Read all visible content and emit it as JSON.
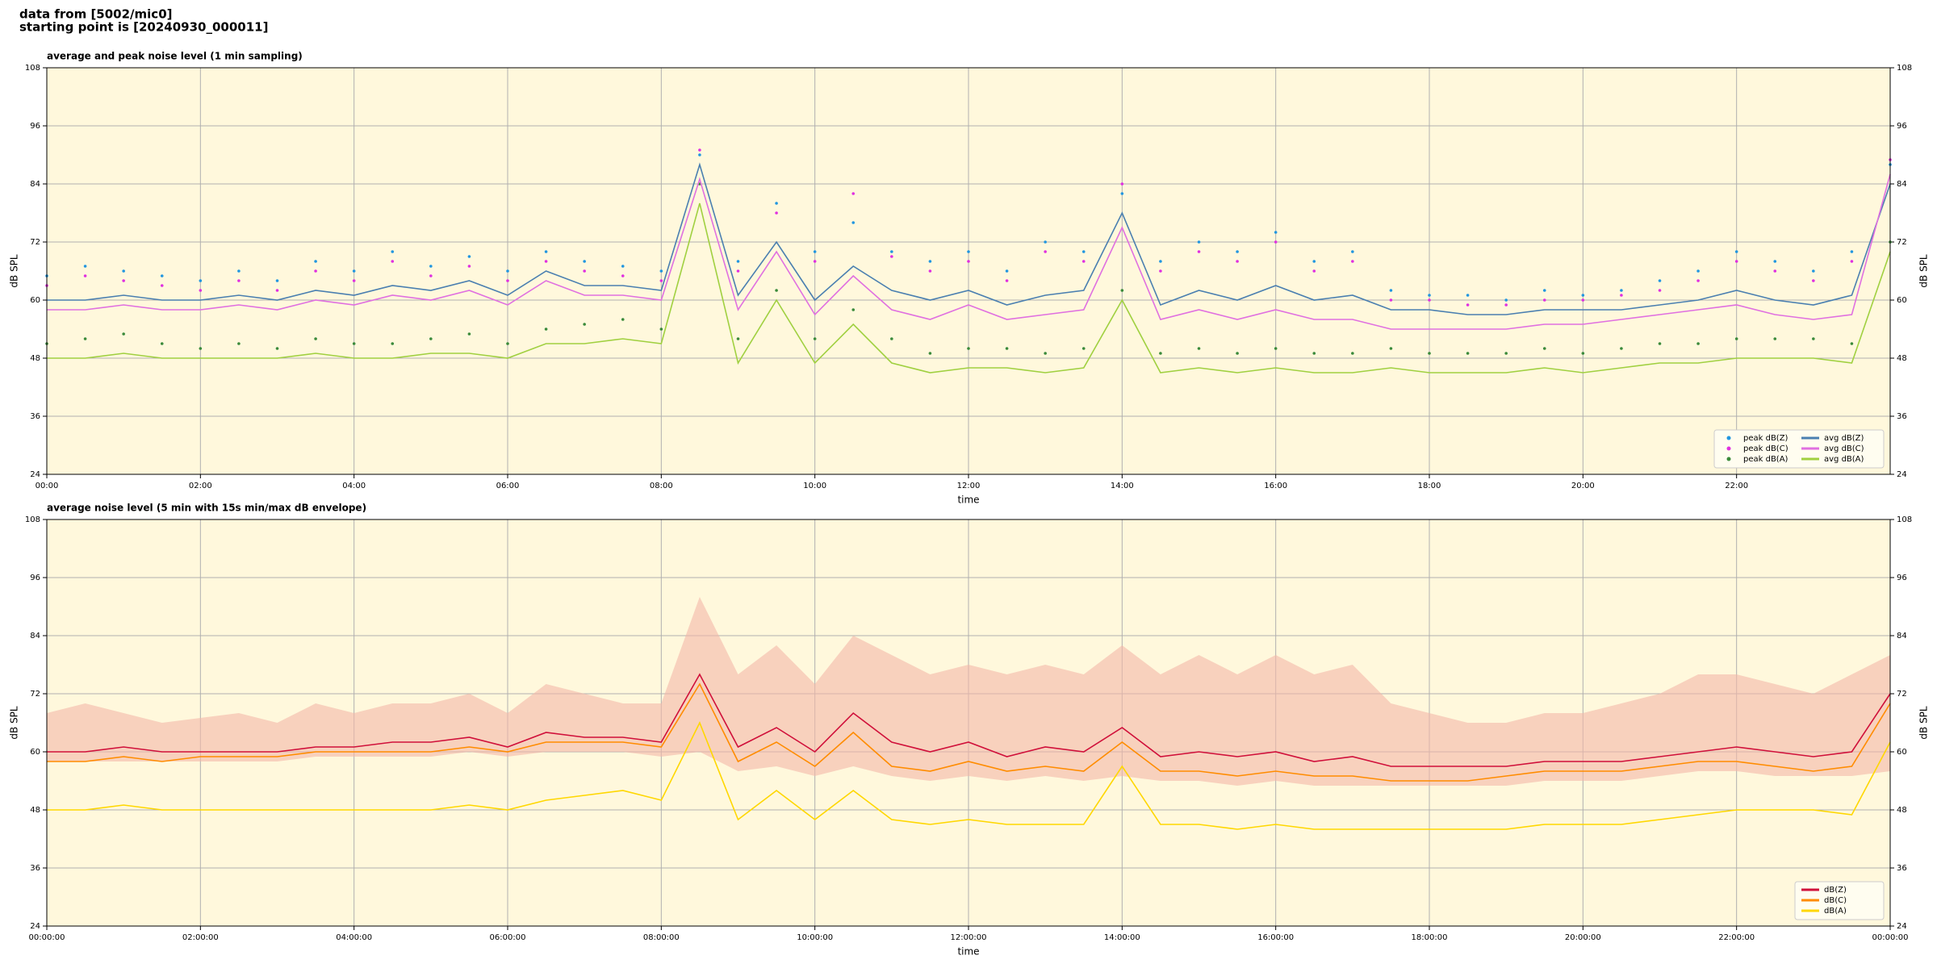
{
  "header": {
    "line1": "data from [5002/mic0]",
    "line2": "starting point is [20240930_000011]"
  },
  "chart_data": [
    {
      "type": "line",
      "title": "average and peak noise level (1 min sampling)",
      "x_label": "time",
      "y_label": "dB SPL",
      "xlim": [
        0,
        24
      ],
      "ylim": [
        24,
        108
      ],
      "yticks": [
        24,
        36,
        48,
        60,
        72,
        84,
        96,
        108
      ],
      "xticks": [
        {
          "value": 0,
          "label": "00:00"
        },
        {
          "value": 2,
          "label": "02:00"
        },
        {
          "value": 4,
          "label": "04:00"
        },
        {
          "value": 6,
          "label": "06:00"
        },
        {
          "value": 8,
          "label": "08:00"
        },
        {
          "value": 10,
          "label": "10:00"
        },
        {
          "value": 12,
          "label": "12:00"
        },
        {
          "value": 14,
          "label": "14:00"
        },
        {
          "value": 16,
          "label": "16:00"
        },
        {
          "value": 18,
          "label": "18:00"
        },
        {
          "value": 20,
          "label": "20:00"
        },
        {
          "value": 22,
          "label": "22:00"
        }
      ],
      "grid": true,
      "legend": "lower right",
      "legend_columns": 2,
      "background": "#fff8dc",
      "x": [
        0,
        0.5,
        1,
        1.5,
        2,
        2.5,
        3,
        3.5,
        4,
        4.5,
        5,
        5.5,
        6,
        6.5,
        7,
        7.5,
        8,
        8.5,
        9,
        9.5,
        10,
        10.5,
        11,
        11.5,
        12,
        12.5,
        13,
        13.5,
        14,
        14.5,
        15,
        15.5,
        16,
        16.5,
        17,
        17.5,
        18,
        18.5,
        19,
        19.5,
        20,
        20.5,
        21,
        21.5,
        22,
        22.5,
        23,
        23.5,
        24
      ],
      "series": [
        {
          "name": "peak dB(Z)",
          "style": "dots",
          "color": "#2196e0",
          "values": [
            65,
            67,
            66,
            65,
            64,
            66,
            64,
            68,
            66,
            70,
            67,
            69,
            66,
            70,
            68,
            67,
            66,
            90,
            68,
            80,
            70,
            76,
            70,
            68,
            70,
            66,
            72,
            70,
            82,
            68,
            72,
            70,
            74,
            68,
            70,
            62,
            61,
            61,
            60,
            62,
            61,
            62,
            64,
            66,
            70,
            68,
            66,
            70,
            88
          ]
        },
        {
          "name": "peak dB(C)",
          "style": "dots",
          "color": "#e030e0",
          "values": [
            63,
            65,
            64,
            63,
            62,
            64,
            62,
            66,
            64,
            68,
            65,
            67,
            64,
            68,
            66,
            65,
            64,
            91,
            66,
            78,
            68,
            82,
            69,
            66,
            68,
            64,
            70,
            68,
            84,
            66,
            70,
            68,
            72,
            66,
            68,
            60,
            60,
            59,
            59,
            60,
            60,
            61,
            62,
            64,
            68,
            66,
            64,
            68,
            89
          ]
        },
        {
          "name": "peak dB(A)",
          "style": "dots",
          "color": "#3a8a3a",
          "values": [
            51,
            52,
            53,
            51,
            50,
            51,
            50,
            52,
            51,
            51,
            52,
            53,
            51,
            54,
            55,
            56,
            54,
            84,
            52,
            62,
            52,
            58,
            52,
            49,
            50,
            50,
            49,
            50,
            62,
            49,
            50,
            49,
            50,
            49,
            49,
            50,
            49,
            49,
            49,
            50,
            49,
            50,
            51,
            51,
            52,
            52,
            52,
            51,
            72
          ]
        },
        {
          "name": "avg dB(Z)",
          "style": "line",
          "color": "#4a7fb0",
          "values": [
            60,
            60,
            61,
            60,
            60,
            61,
            60,
            62,
            61,
            63,
            62,
            64,
            61,
            66,
            63,
            63,
            62,
            88,
            61,
            72,
            60,
            67,
            62,
            60,
            62,
            59,
            61,
            62,
            78,
            59,
            62,
            60,
            63,
            60,
            61,
            58,
            58,
            57,
            57,
            58,
            58,
            58,
            59,
            60,
            62,
            60,
            59,
            61,
            84
          ]
        },
        {
          "name": "avg dB(C)",
          "style": "line",
          "color": "#e070e0",
          "values": [
            58,
            58,
            59,
            58,
            58,
            59,
            58,
            60,
            59,
            61,
            60,
            62,
            59,
            64,
            61,
            61,
            60,
            85,
            58,
            70,
            57,
            65,
            58,
            56,
            59,
            56,
            57,
            58,
            75,
            56,
            58,
            56,
            58,
            56,
            56,
            54,
            54,
            54,
            54,
            55,
            55,
            56,
            57,
            58,
            59,
            57,
            56,
            57,
            86
          ]
        },
        {
          "name": "avg dB(A)",
          "style": "line",
          "color": "#a0d040",
          "values": [
            48,
            48,
            49,
            48,
            48,
            48,
            48,
            49,
            48,
            48,
            49,
            49,
            48,
            51,
            51,
            52,
            51,
            80,
            47,
            60,
            47,
            55,
            47,
            45,
            46,
            46,
            45,
            46,
            60,
            45,
            46,
            45,
            46,
            45,
            45,
            46,
            45,
            45,
            45,
            46,
            45,
            46,
            47,
            47,
            48,
            48,
            48,
            47,
            70
          ]
        }
      ]
    },
    {
      "type": "line",
      "title": "average noise level (5 min with 15s min/max dB envelope)",
      "x_label": "time",
      "y_label": "dB SPL",
      "xlim": [
        0,
        24
      ],
      "ylim": [
        24,
        108
      ],
      "yticks": [
        24,
        36,
        48,
        60,
        72,
        84,
        96,
        108
      ],
      "xticks": [
        {
          "value": 0,
          "label": "00:00:00"
        },
        {
          "value": 2,
          "label": "02:00:00"
        },
        {
          "value": 4,
          "label": "04:00:00"
        },
        {
          "value": 6,
          "label": "06:00:00"
        },
        {
          "value": 8,
          "label": "08:00:00"
        },
        {
          "value": 10,
          "label": "10:00:00"
        },
        {
          "value": 12,
          "label": "12:00:00"
        },
        {
          "value": 14,
          "label": "14:00:00"
        },
        {
          "value": 16,
          "label": "16:00:00"
        },
        {
          "value": 18,
          "label": "18:00:00"
        },
        {
          "value": 20,
          "label": "20:00:00"
        },
        {
          "value": 22,
          "label": "22:00:00"
        },
        {
          "value": 24,
          "label": "00:00:00"
        }
      ],
      "grid": true,
      "legend": "lower right",
      "legend_columns": 1,
      "background": "#fff8dc",
      "x": [
        0,
        0.5,
        1,
        1.5,
        2,
        2.5,
        3,
        3.5,
        4,
        4.5,
        5,
        5.5,
        6,
        6.5,
        7,
        7.5,
        8,
        8.5,
        9,
        9.5,
        10,
        10.5,
        11,
        11.5,
        12,
        12.5,
        13,
        13.5,
        14,
        14.5,
        15,
        15.5,
        16,
        16.5,
        17,
        17.5,
        18,
        18.5,
        19,
        19.5,
        20,
        20.5,
        21,
        21.5,
        22,
        22.5,
        23,
        23.5,
        24
      ],
      "envelope": {
        "color": "#f4b8a8",
        "upper": [
          68,
          70,
          68,
          66,
          67,
          68,
          66,
          70,
          68,
          70,
          70,
          72,
          68,
          74,
          72,
          70,
          70,
          92,
          76,
          82,
          74,
          84,
          80,
          76,
          78,
          76,
          78,
          76,
          82,
          76,
          80,
          76,
          80,
          76,
          78,
          70,
          68,
          66,
          66,
          68,
          68,
          70,
          72,
          76,
          76,
          74,
          72,
          76,
          80
        ],
        "lower": [
          58,
          58,
          58,
          58,
          58,
          58,
          58,
          59,
          59,
          59,
          59,
          60,
          59,
          60,
          60,
          60,
          59,
          60,
          56,
          57,
          55,
          57,
          55,
          54,
          55,
          54,
          55,
          54,
          55,
          54,
          54,
          53,
          54,
          53,
          53,
          53,
          53,
          53,
          53,
          54,
          54,
          54,
          55,
          56,
          56,
          55,
          55,
          55,
          56
        ]
      },
      "series": [
        {
          "name": "dB(Z)",
          "style": "line",
          "color": "#d0103a",
          "values": [
            60,
            60,
            61,
            60,
            60,
            60,
            60,
            61,
            61,
            62,
            62,
            63,
            61,
            64,
            63,
            63,
            62,
            76,
            61,
            65,
            60,
            68,
            62,
            60,
            62,
            59,
            61,
            60,
            65,
            59,
            60,
            59,
            60,
            58,
            59,
            57,
            57,
            57,
            57,
            58,
            58,
            58,
            59,
            60,
            61,
            60,
            59,
            60,
            72
          ]
        },
        {
          "name": "dB(C)",
          "style": "line",
          "color": "#ff8c00",
          "values": [
            58,
            58,
            59,
            58,
            59,
            59,
            59,
            60,
            60,
            60,
            60,
            61,
            60,
            62,
            62,
            62,
            61,
            74,
            58,
            62,
            57,
            64,
            57,
            56,
            58,
            56,
            57,
            56,
            62,
            56,
            56,
            55,
            56,
            55,
            55,
            54,
            54,
            54,
            55,
            56,
            56,
            56,
            57,
            58,
            58,
            57,
            56,
            57,
            70
          ]
        },
        {
          "name": "dB(A)",
          "style": "line",
          "color": "#ffd700",
          "values": [
            48,
            48,
            49,
            48,
            48,
            48,
            48,
            48,
            48,
            48,
            48,
            49,
            48,
            50,
            51,
            52,
            50,
            66,
            46,
            52,
            46,
            52,
            46,
            45,
            46,
            45,
            45,
            45,
            57,
            45,
            45,
            44,
            45,
            44,
            44,
            44,
            44,
            44,
            44,
            45,
            45,
            45,
            46,
            47,
            48,
            48,
            48,
            47,
            62
          ]
        }
      ]
    }
  ]
}
